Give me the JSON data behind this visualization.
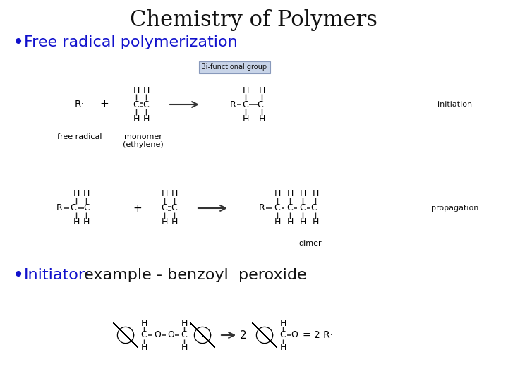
{
  "title": "Chemistry of Polymers",
  "title_fontsize": 22,
  "title_color": "#111111",
  "bullet1": "Free radical polymerization",
  "bullet1_color": "#1111CC",
  "bullet1_fontsize": 16,
  "bullet2_prefix": "Initiator:",
  "bullet2_prefix_color": "#1111CC",
  "bullet2_rest": " example - benzoyl  peroxide",
  "bullet2_rest_color": "#111111",
  "bullet2_fontsize": 16,
  "bg_color": "#ffffff",
  "label_fontsize": 8,
  "chem_fontsize": 9,
  "bifunctional_box_color": "#C8D4E8",
  "bifunctional_text": "Bi-functional group",
  "initiation_label": "initiation",
  "propagation_label": "propagation",
  "free_radical_label": "free radical",
  "monomer_label1": "monomer",
  "monomer_label2": "(ethylene)",
  "dimer_label": "dimer"
}
